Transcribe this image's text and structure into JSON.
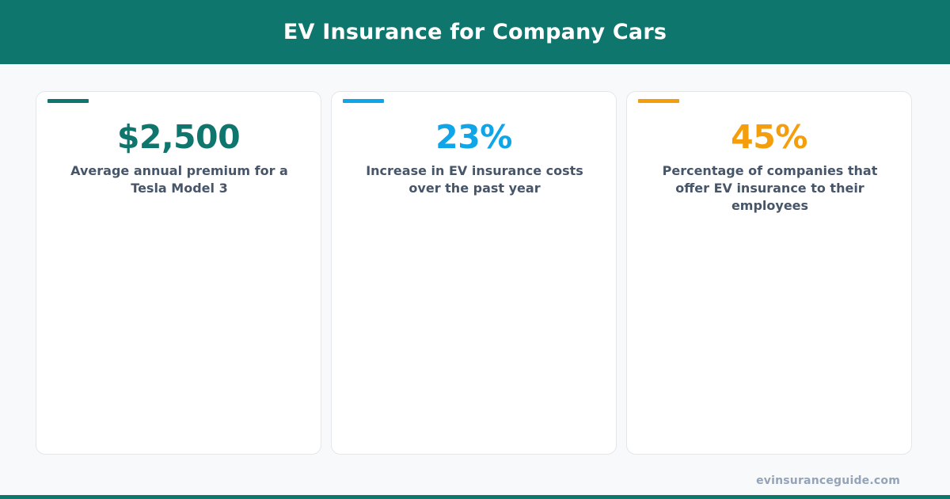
{
  "header": {
    "title": "EV Insurance for Company Cars"
  },
  "stats": [
    {
      "value": "$2,500",
      "label": "Average annual premium for a Tesla Model 3",
      "color": "#0f766e"
    },
    {
      "value": "23%",
      "label": "Increase in EV insurance costs over the past year",
      "color": "#0ea5e9"
    },
    {
      "value": "45%",
      "label": "Percentage of companies that offer EV insurance to their employees",
      "color": "#f59e0b"
    }
  ],
  "footer": {
    "url": "evinsuranceguide.com"
  },
  "colors": {
    "brand": "#0f766e",
    "text_muted": "#475569"
  }
}
